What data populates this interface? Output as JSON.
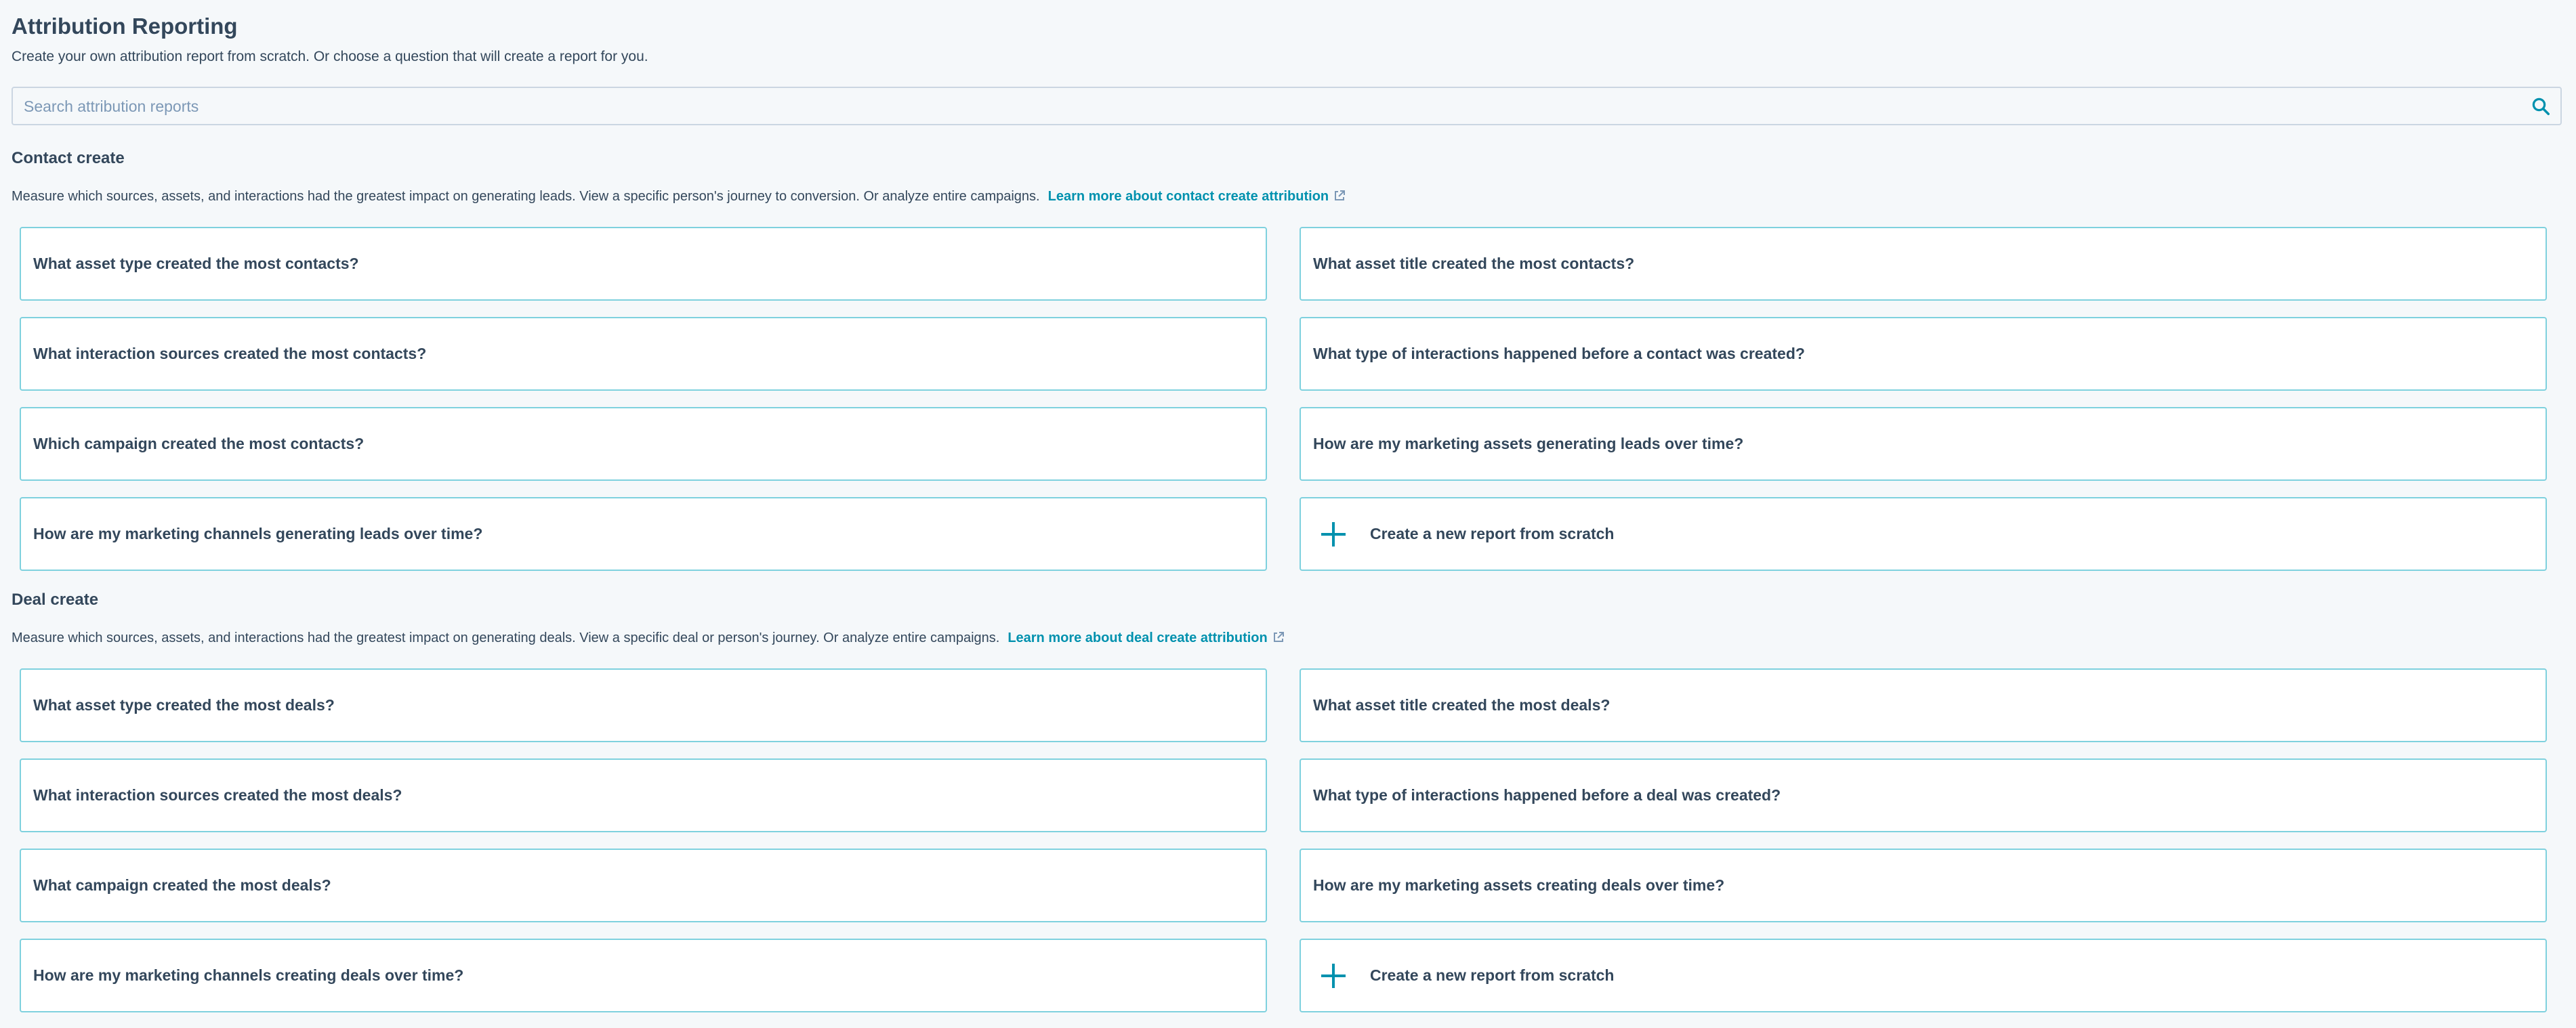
{
  "header": {
    "title": "Attribution Reporting",
    "subtitle": "Create your own attribution report from scratch. Or choose a question that will create a report for you."
  },
  "search": {
    "placeholder": "Search attribution reports",
    "value": "",
    "icon": "search-icon"
  },
  "colors": {
    "accent": "#0091ae",
    "card_border": "#7fd1de",
    "text": "#33475b",
    "background": "#f5f8fa"
  },
  "sections": [
    {
      "heading": "Contact create",
      "description": "Measure which sources, assets, and interactions had the greatest impact on generating leads. View a specific person's journey to conversion. Or analyze entire campaigns.",
      "link": "Learn more about contact create attribution",
      "cards": [
        "What asset type created the most contacts?",
        "What asset title created the most contacts?",
        "What interaction sources created the most contacts?",
        "What type of interactions happened before a contact was created?",
        "Which campaign created the most contacts?",
        "How are my marketing assets generating leads over time?",
        "How are my marketing channels generating leads over time?",
        "Create a new report from scratch"
      ]
    },
    {
      "heading": "Deal create",
      "description": "Measure which sources, assets, and interactions had the greatest impact on generating deals. View a specific deal or person's journey. Or analyze entire campaigns.",
      "link": "Learn more about deal create attribution",
      "cards": [
        "What asset type created the most deals?",
        "What asset title created the most deals?",
        "What interaction sources created the most deals?",
        "What type of interactions happened before a deal was created?",
        "What campaign created the most deals?",
        "How are my marketing assets creating deals over time?",
        "How are my marketing channels creating deals over time?",
        "Create a new report from scratch"
      ]
    }
  ]
}
